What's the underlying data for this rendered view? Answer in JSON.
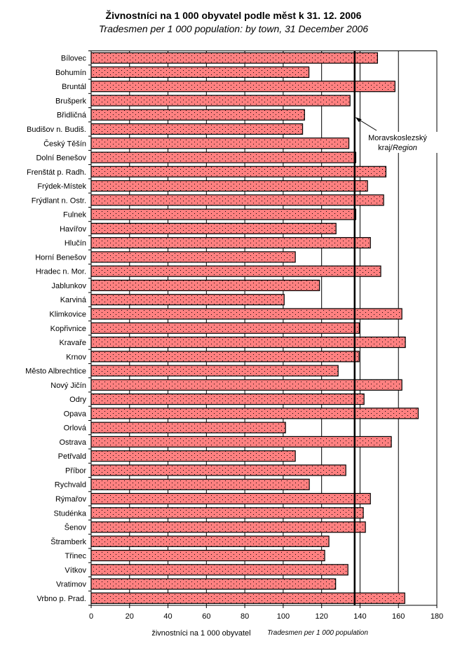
{
  "chart_data": {
    "type": "bar",
    "orientation": "horizontal",
    "title": "Živnostníci na 1 000 obyvatel podle měst k 31. 12. 2006",
    "subtitle": "Tradesmen per 1 000 population: by town, 31 December 2006",
    "xlabel": "živnostníci na 1 000 obyvatel",
    "xlabel_en": "Tradesmen per 1 000 population",
    "ylabel": "",
    "xlim": [
      0,
      180
    ],
    "x_ticks": [
      0,
      20,
      40,
      60,
      80,
      100,
      120,
      140,
      160,
      180
    ],
    "grid": "vertical",
    "bar_color": "#FF8080",
    "categories": [
      "Bílovec",
      "Bohumín",
      "Bruntál",
      "Brušperk",
      "Břidličná",
      "Budišov n. Budiš.",
      "Český Těšín",
      "Dolní Benešov",
      "Frenštát p. Radh.",
      "Frýdek-Místek",
      "Frýdlant n. Ostr.",
      "Fulnek",
      "Havířov",
      "Hlučín",
      "Horní Benešov",
      "Hradec n. Mor.",
      "Jablunkov",
      "Karviná",
      "Klimkovice",
      "Kopřivnice",
      "Kravaře",
      "Krnov",
      "Město Albrechtice",
      "Nový Jičín",
      "Odry",
      "Opava",
      "Orlová",
      "Ostrava",
      "Petřvald",
      "Příbor",
      "Rychvald",
      "Rýmařov",
      "Studénka",
      "Šenov",
      "Štramberk",
      "Třinec",
      "Vítkov",
      "Vratimov",
      "Vrbno p. Prad."
    ],
    "values": [
      149.1,
      113.4,
      158.2,
      134.8,
      111.1,
      110.1,
      134.2,
      137.8,
      153.5,
      143.9,
      152.3,
      137.8,
      127.5,
      145.4,
      106.3,
      150.8,
      118.9,
      100.5,
      161.8,
      139.6,
      163.6,
      139.5,
      128.6,
      161.8,
      142.1,
      170.3,
      101.2,
      156.3,
      106.3,
      132.6,
      113.6,
      145.4,
      141.7,
      142.8,
      123.8,
      121.6,
      133.7,
      127.3,
      163.3
    ],
    "reference_line": {
      "value": 137.2,
      "label": "Moravskoslezský",
      "label_line2": "kraj",
      "label_line2_en": "Region",
      "separator": "/"
    }
  }
}
